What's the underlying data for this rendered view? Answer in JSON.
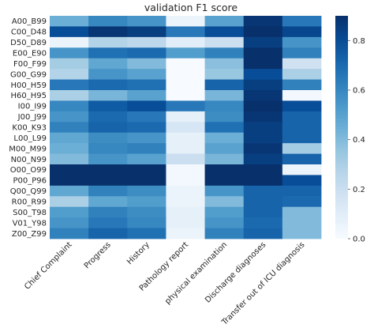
{
  "chart_data": {
    "type": "heatmap",
    "title": "validation F1 score",
    "xlabel": "",
    "ylabel": "",
    "rows": [
      "A00_B99",
      "C00_D48",
      "D50_D89",
      "E00_E90",
      "F00_F99",
      "G00_G99",
      "H00_H59",
      "H60_H95",
      "I00_I99",
      "J00_J99",
      "K00_K93",
      "L00_L99",
      "M00_M99",
      "N00_N99",
      "O00_O99",
      "P00_P96",
      "Q00_Q99",
      "R00_R99",
      "S00_T98",
      "V01_Y98",
      "Z00_Z99"
    ],
    "columns": [
      "Chief Complaint",
      "Progress",
      "History",
      "Pathology report",
      "physical examination",
      "Discharge diagnoses",
      "Transfer out of ICU diagnosis"
    ],
    "values": [
      [
        0.45,
        0.6,
        0.55,
        0.05,
        0.5,
        0.88,
        0.65
      ],
      [
        0.8,
        0.88,
        0.85,
        0.65,
        0.8,
        0.95,
        0.82
      ],
      [
        0.05,
        0.28,
        0.25,
        0.1,
        0.2,
        0.85,
        0.55
      ],
      [
        0.55,
        0.68,
        0.7,
        0.52,
        0.62,
        0.9,
        0.62
      ],
      [
        0.32,
        0.48,
        0.4,
        0.0,
        0.38,
        0.9,
        0.18
      ],
      [
        0.28,
        0.55,
        0.5,
        0.0,
        0.35,
        0.8,
        0.3
      ],
      [
        0.65,
        0.7,
        0.68,
        0.0,
        0.72,
        0.85,
        0.62
      ],
      [
        0.3,
        0.42,
        0.5,
        0.0,
        0.42,
        0.88,
        0.02
      ],
      [
        0.6,
        0.75,
        0.8,
        0.65,
        0.6,
        0.9,
        0.8
      ],
      [
        0.55,
        0.7,
        0.65,
        0.08,
        0.58,
        0.88,
        0.72
      ],
      [
        0.62,
        0.72,
        0.7,
        0.15,
        0.68,
        0.85,
        0.72
      ],
      [
        0.48,
        0.58,
        0.55,
        0.08,
        0.45,
        0.85,
        0.72
      ],
      [
        0.45,
        0.6,
        0.62,
        0.08,
        0.5,
        0.88,
        0.32
      ],
      [
        0.4,
        0.55,
        0.5,
        0.2,
        0.42,
        0.85,
        0.72
      ],
      [
        0.95,
        0.97,
        0.95,
        0.02,
        0.95,
        0.99,
        0.05
      ],
      [
        0.92,
        0.9,
        0.92,
        0.02,
        0.92,
        0.92,
        0.8
      ],
      [
        0.48,
        0.62,
        0.58,
        0.05,
        0.55,
        0.72,
        0.72
      ],
      [
        0.3,
        0.48,
        0.52,
        0.05,
        0.4,
        0.72,
        0.7
      ],
      [
        0.52,
        0.62,
        0.58,
        0.08,
        0.52,
        0.72,
        0.4
      ],
      [
        0.55,
        0.65,
        0.6,
        0.08,
        0.55,
        0.7,
        0.4
      ],
      [
        0.62,
        0.72,
        0.68,
        0.05,
        0.62,
        0.72,
        0.4
      ]
    ],
    "colorbar": {
      "range": [
        0.0,
        0.9
      ],
      "ticks": [
        "0.0",
        "0.2",
        "0.4",
        "0.6",
        "0.8"
      ],
      "colormap": "Blues"
    },
    "grid": false
  }
}
